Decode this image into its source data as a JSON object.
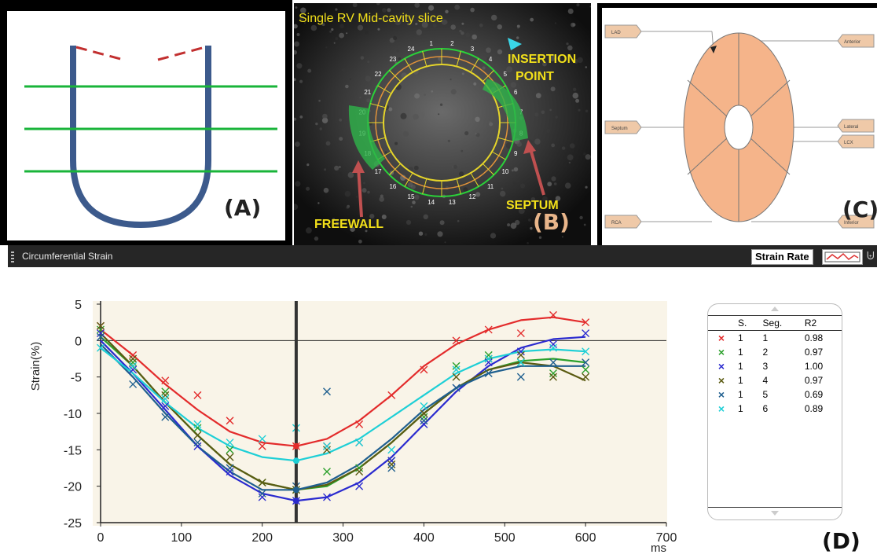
{
  "panels": {
    "a_label": "(A)",
    "b_label": "(B)",
    "c_label": "(C)",
    "d_label": "(D)",
    "b_title": "Single RV Mid-cavity slice",
    "b_insertion": "INSERTION",
    "b_point": "POINT",
    "b_septum": "SEPTUM",
    "b_freewall": "FREEWALL",
    "b_numbers": [
      "1",
      "2",
      "3",
      "4",
      "5",
      "6",
      "7",
      "8",
      "9",
      "10",
      "11",
      "12",
      "13",
      "14",
      "15",
      "16",
      "17",
      "18",
      "19",
      "20",
      "21",
      "22",
      "23",
      "24"
    ],
    "c_tags": [
      "LAD",
      "Septum",
      "RCA",
      "Anterior",
      "Lateral",
      "LCX",
      "Inferior"
    ]
  },
  "strain_panel": {
    "title": "Circumferential Strain",
    "strain_rate_button": "Strain Rate"
  },
  "legend": {
    "headers": [
      "S.",
      "Seg.",
      "R2"
    ],
    "rows": [
      {
        "marker": "×",
        "color": "#e32b2b",
        "s": "1",
        "seg": "1",
        "r2": "0.98"
      },
      {
        "marker": "×",
        "color": "#2ca02c",
        "s": "1",
        "seg": "2",
        "r2": "0.97"
      },
      {
        "marker": "×",
        "color": "#2a2acf",
        "s": "1",
        "seg": "3",
        "r2": "1.00"
      },
      {
        "marker": "×",
        "color": "#5b5b12",
        "s": "1",
        "seg": "4",
        "r2": "0.97"
      },
      {
        "marker": "×",
        "color": "#1f5f8f",
        "s": "1",
        "seg": "5",
        "r2": "0.69"
      },
      {
        "marker": "×",
        "color": "#1ecfd6",
        "s": "1",
        "seg": "6",
        "r2": "0.89"
      }
    ]
  },
  "chart_data": {
    "type": "line",
    "title": "",
    "xlabel": "ms",
    "ylabel": "Strain(%)",
    "xlim": [
      0,
      700
    ],
    "ylim": [
      -25,
      5
    ],
    "xticks": [
      0,
      100,
      200,
      300,
      400,
      500,
      600,
      700
    ],
    "yticks": [
      5,
      0,
      -5,
      -10,
      -15,
      -20,
      -25
    ],
    "cursor_x": 242,
    "grid": false,
    "series": [
      {
        "color": "#e32b2b",
        "curve_x": [
          0,
          40,
          80,
          120,
          160,
          200,
          242,
          280,
          320,
          360,
          400,
          440,
          480,
          520,
          560,
          600
        ],
        "curve_y": [
          1.5,
          -2,
          -6,
          -9.5,
          -12.5,
          -14,
          -14.5,
          -13.5,
          -11,
          -7.5,
          -3.5,
          -0.5,
          1.5,
          2.8,
          3.2,
          2.5
        ],
        "points_x": [
          0,
          40,
          80,
          120,
          160,
          200,
          242,
          280,
          320,
          360,
          400,
          440,
          480,
          520,
          560,
          600
        ],
        "points_y": [
          2,
          -2,
          -5.5,
          -7.5,
          -11,
          -14.5,
          -14.5,
          -14.5,
          -11.5,
          -7.5,
          -4,
          0,
          1.5,
          1,
          3.5,
          2.5
        ]
      },
      {
        "color": "#2ca02c",
        "curve_x": [
          0,
          40,
          80,
          120,
          160,
          200,
          242,
          280,
          320,
          360,
          400,
          440,
          480,
          520,
          560,
          600
        ],
        "curve_y": [
          0.5,
          -3.5,
          -8.5,
          -13,
          -17,
          -19.5,
          -20.5,
          -20,
          -17.5,
          -14,
          -10,
          -6.5,
          -4,
          -2.8,
          -2.5,
          -3
        ],
        "points_x": [
          0,
          40,
          80,
          120,
          160,
          200,
          242,
          280,
          320,
          360,
          400,
          440,
          480,
          520,
          560,
          600
        ],
        "points_y": [
          1.5,
          -3,
          -7,
          -12,
          -15,
          -19.5,
          -20.5,
          -18,
          -17.5,
          -16.5,
          -10.5,
          -3.5,
          -2,
          -3,
          -4.5,
          -4
        ]
      },
      {
        "color": "#2a2acf",
        "curve_x": [
          0,
          40,
          80,
          120,
          160,
          200,
          242,
          280,
          320,
          360,
          400,
          440,
          480,
          520,
          560,
          600
        ],
        "curve_y": [
          0,
          -4.5,
          -9.5,
          -14.5,
          -18.5,
          -21,
          -22,
          -21.5,
          -19.5,
          -16,
          -11.5,
          -7,
          -3.5,
          -1,
          0.2,
          0.5
        ],
        "points_x": [
          0,
          40,
          80,
          120,
          160,
          200,
          242,
          280,
          320,
          360,
          400,
          440,
          480,
          520,
          560,
          600
        ],
        "points_y": [
          1,
          -4,
          -9,
          -14.5,
          -18,
          -21.5,
          -22,
          -21.5,
          -20,
          -16.5,
          -11.5,
          -6.5,
          -3,
          -1.5,
          -0.5,
          1
        ]
      },
      {
        "color": "#5b5b12",
        "curve_x": [
          0,
          40,
          80,
          120,
          160,
          200,
          242,
          280,
          320,
          360,
          400,
          440,
          480,
          520,
          560,
          600
        ],
        "curve_y": [
          1,
          -3.5,
          -8.5,
          -13,
          -17,
          -19.5,
          -20.5,
          -19.8,
          -17.5,
          -14,
          -10,
          -6.5,
          -4,
          -3,
          -3.5,
          -5.5
        ],
        "points_x": [
          0,
          40,
          80,
          120,
          160,
          200,
          242,
          280,
          320,
          360,
          400,
          440,
          480,
          520,
          560,
          600
        ],
        "points_y": [
          2,
          -2.5,
          -7.5,
          -13,
          -16,
          -19.5,
          -20.5,
          -15,
          -18,
          -17,
          -10,
          -5,
          -2.5,
          -2,
          -5,
          -5
        ]
      },
      {
        "color": "#1f5f8f",
        "curve_x": [
          0,
          40,
          80,
          120,
          160,
          200,
          242,
          280,
          320,
          360,
          400,
          440,
          480,
          520,
          560,
          600
        ],
        "curve_y": [
          -0.5,
          -5,
          -10,
          -14.5,
          -18,
          -20.5,
          -20.5,
          -19.5,
          -17,
          -13.5,
          -9.5,
          -6.5,
          -4.5,
          -3.5,
          -3.5,
          -3.5
        ],
        "points_x": [
          0,
          40,
          80,
          120,
          160,
          200,
          242,
          280,
          320,
          360,
          400,
          440,
          480,
          520,
          560,
          600
        ],
        "points_y": [
          0.5,
          -6,
          -10.5,
          -14,
          -17.5,
          -21,
          -20,
          -7,
          -14,
          -17.5,
          -11,
          -6.5,
          -4.5,
          -5,
          -3,
          -3
        ]
      },
      {
        "color": "#1ecfd6",
        "curve_x": [
          0,
          40,
          80,
          120,
          160,
          200,
          242,
          280,
          320,
          360,
          400,
          440,
          480,
          520,
          560,
          600
        ],
        "curve_y": [
          -1,
          -4.5,
          -8.5,
          -12,
          -14.5,
          -16,
          -16.5,
          -15.5,
          -13.5,
          -10.5,
          -7.5,
          -4.5,
          -2.5,
          -1.5,
          -1.2,
          -1.5
        ],
        "points_x": [
          0,
          40,
          80,
          120,
          160,
          200,
          242,
          280,
          320,
          360,
          400,
          440,
          480,
          520,
          560,
          600
        ],
        "points_y": [
          -1,
          -3.5,
          -8,
          -11.5,
          -14,
          -13.5,
          -12,
          -14.5,
          -14,
          -15,
          -9,
          -4,
          -2.5,
          -3,
          -1,
          -1.5
        ]
      }
    ]
  }
}
